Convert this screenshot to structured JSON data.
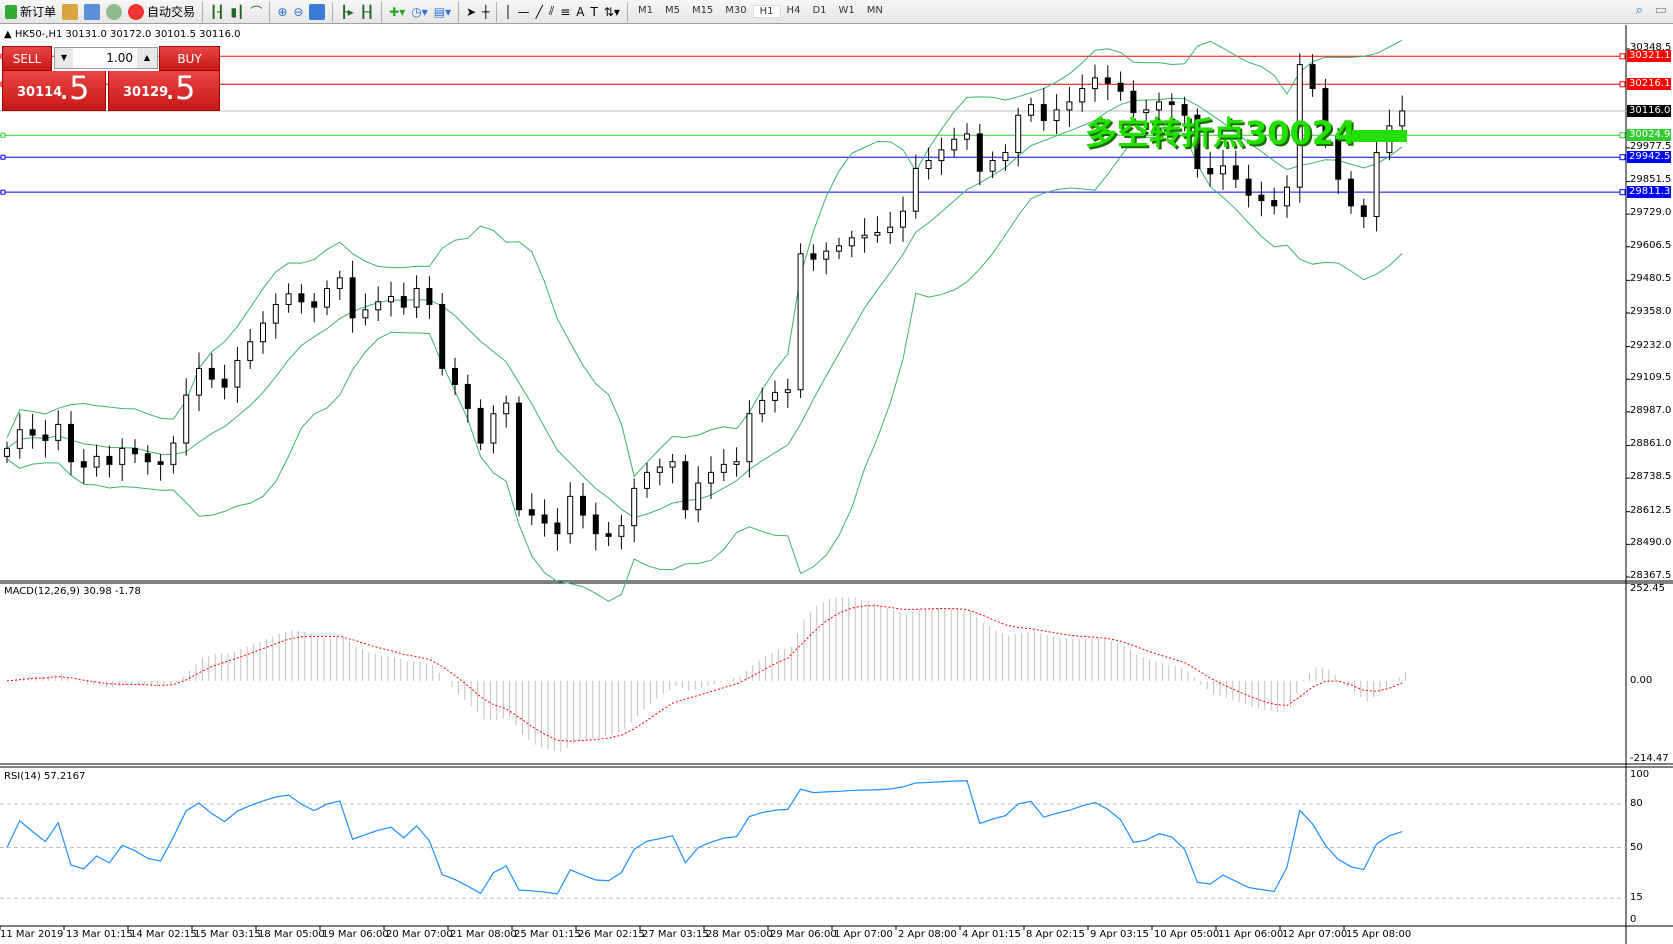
{
  "toolbar": {
    "new_order": "新订单",
    "auto_trading": "自动交易",
    "timeframes": [
      "M1",
      "M5",
      "M15",
      "M30",
      "H1",
      "H4",
      "D1",
      "W1",
      "MN"
    ],
    "active_timeframe": "H1"
  },
  "chart": {
    "header": "HK50-,H1  30131.0 30172.0 30101.5 30116.0",
    "trade_panel": {
      "sell_label": "SELL",
      "buy_label": "BUY",
      "lot": "1.00",
      "sell_price_main": "30114",
      "sell_price_frac": ".5",
      "buy_price_main": "30129",
      "buy_price_frac": ".5"
    },
    "annotation": "多空转折点30024",
    "price_axis": [
      "30348.5",
      "29977.5",
      "29851.5",
      "29729.0",
      "29606.5",
      "29480.5",
      "29358.0",
      "29232.0",
      "29109.5",
      "28987.0",
      "28861.0",
      "28738.5",
      "28612.5",
      "28490.0",
      "28367.5"
    ],
    "levels": [
      {
        "value": "30321.1",
        "color": "#ff0000"
      },
      {
        "value": "30216.1",
        "color": "#ff0000"
      },
      {
        "value": "30116.0",
        "color": "#000000",
        "line": "#c0c0c0"
      },
      {
        "value": "30024.9",
        "color": "#33cc33"
      },
      {
        "value": "29942.5",
        "color": "#0000ff"
      },
      {
        "value": "29811.3",
        "color": "#0000ff"
      }
    ],
    "time_axis": [
      "11 Mar 2019",
      "13 Mar 01:15",
      "14 Mar 02:15",
      "15 Mar 03:15",
      "18 Mar 05:00",
      "19 Mar 06:00",
      "20 Mar 07:00",
      "21 Mar 08:00",
      "25 Mar 01:15",
      "26 Mar 02:15",
      "27 Mar 03:15",
      "28 Mar 05:00",
      "29 Mar 06:00",
      "1 Apr 07:00",
      "2 Apr 08:00",
      "4 Apr 01:15",
      "8 Apr 02:15",
      "9 Apr 03:15",
      "10 Apr 05:00",
      "11 Apr 06:00",
      "12 Apr 07:00",
      "15 Apr 08:00"
    ],
    "macd_label": "MACD(12,26,9) 30.98 -1.78",
    "macd_axis": [
      "252.45",
      "0.00",
      "-214.47"
    ],
    "rsi_label": "RSI(14) 57.2167",
    "rsi_axis": [
      "100",
      "80",
      "50",
      "15",
      "0"
    ]
  },
  "chart_data": {
    "type": "candlestick",
    "symbol": "HK50-",
    "timeframe": "H1",
    "ylim": [
      28367.5,
      30348.5
    ],
    "closes": [
      28850,
      28920,
      28900,
      28880,
      28940,
      28800,
      28780,
      28820,
      28790,
      28850,
      28830,
      28800,
      28790,
      28870,
      29050,
      29150,
      29110,
      29080,
      29180,
      29250,
      29320,
      29390,
      29430,
      29400,
      29380,
      29450,
      29490,
      29340,
      29370,
      29400,
      29420,
      29380,
      29450,
      29390,
      29150,
      29090,
      29000,
      28870,
      28980,
      29020,
      28620,
      28600,
      28570,
      28530,
      28670,
      28600,
      28530,
      28520,
      28560,
      28700,
      28760,
      28780,
      28800,
      28620,
      28720,
      28760,
      28790,
      28800,
      28980,
      29030,
      29060,
      29070,
      29580,
      29560,
      29590,
      29610,
      29640,
      29650,
      29660,
      29680,
      29740,
      29900,
      29930,
      29970,
      30010,
      30030,
      29890,
      29930,
      29960,
      30100,
      30140,
      30080,
      30120,
      30150,
      30200,
      30240,
      30220,
      30190,
      30110,
      30120,
      30150,
      30140,
      30100,
      29900,
      29880,
      29910,
      29860,
      29800,
      29780,
      29760,
      29830,
      30290,
      30200,
      30020,
      29860,
      29760,
      29720,
      29960,
      30060,
      30116
    ],
    "colors": {
      "bull": "#ffffff",
      "bear": "#000000",
      "bands": "#3cb371",
      "macd_hist": "#c0c0c0",
      "macd_signal": "#ff0000",
      "rsi": "#1e90ff"
    },
    "macd_range": [
      -214.47,
      252.45
    ],
    "rsi_levels": [
      80,
      50,
      15
    ]
  }
}
